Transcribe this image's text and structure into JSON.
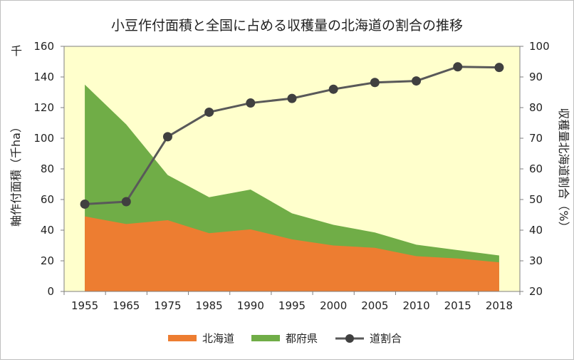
{
  "chart_data": {
    "type": "area",
    "title": "小豆作付面積と全国に占める収穫量の北海道の割合の推移",
    "y_unit_label": "千",
    "ylabel_left": "作付面積（千ha）",
    "ylabel_left_first_char": "軸",
    "ylabel_right": "収穫量北海道割合（%）",
    "categories": [
      "1955",
      "1965",
      "1975",
      "1985",
      "1990",
      "1995",
      "2000",
      "2005",
      "2010",
      "2015",
      "2018"
    ],
    "ylim_left": [
      0,
      160
    ],
    "yticks_left": [
      "0",
      "20",
      "40",
      "60",
      "80",
      "100",
      "120",
      "140",
      "160"
    ],
    "ylim_right": [
      20,
      100
    ],
    "yticks_right": [
      "20",
      "30",
      "40",
      "50",
      "60",
      "70",
      "80",
      "90",
      "100"
    ],
    "series": [
      {
        "name": "北海道",
        "type": "area",
        "axis": "left",
        "color": "#ed7d31",
        "values": [
          49,
          44,
          46.5,
          38,
          40.5,
          34,
          30,
          28.5,
          23,
          21.5,
          19
        ]
      },
      {
        "name": "都府県",
        "type": "area",
        "axis": "left",
        "stacked": true,
        "color": "#70ad47",
        "values": [
          86,
          65,
          29.5,
          23.5,
          26,
          17,
          13.5,
          10,
          7.5,
          5.5,
          4.5
        ]
      },
      {
        "name": "道割合",
        "type": "line",
        "axis": "right",
        "color": "#595959",
        "marker": "circle",
        "values": [
          48.5,
          49.3,
          70.5,
          78.5,
          81.5,
          83.0,
          86.0,
          88.2,
          88.7,
          93.3,
          93.1
        ]
      }
    ],
    "grid": false,
    "plot_background": "#ffffcc",
    "legend_position": "bottom"
  }
}
